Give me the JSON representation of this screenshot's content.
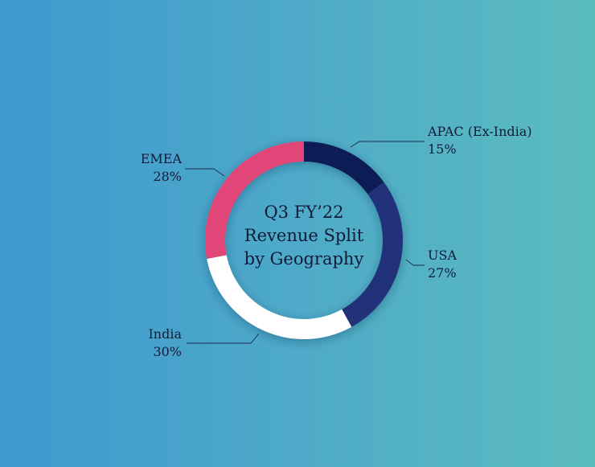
{
  "chart_data": {
    "type": "pie",
    "donut": true,
    "title_lines": [
      "Q3 FY’22",
      "Revenue Split",
      "by Geography"
    ],
    "categories": [
      "APAC (Ex-India)",
      "USA",
      "India",
      "EMEA"
    ],
    "values": [
      15,
      27,
      30,
      28
    ],
    "value_labels": [
      "15%",
      "27%",
      "30%",
      "28%"
    ],
    "colors": [
      "#0f1f55",
      "#22337a",
      "#ffffff",
      "#e04678"
    ],
    "start_angle_deg": 0,
    "direction": "clockwise",
    "legend": "none"
  }
}
